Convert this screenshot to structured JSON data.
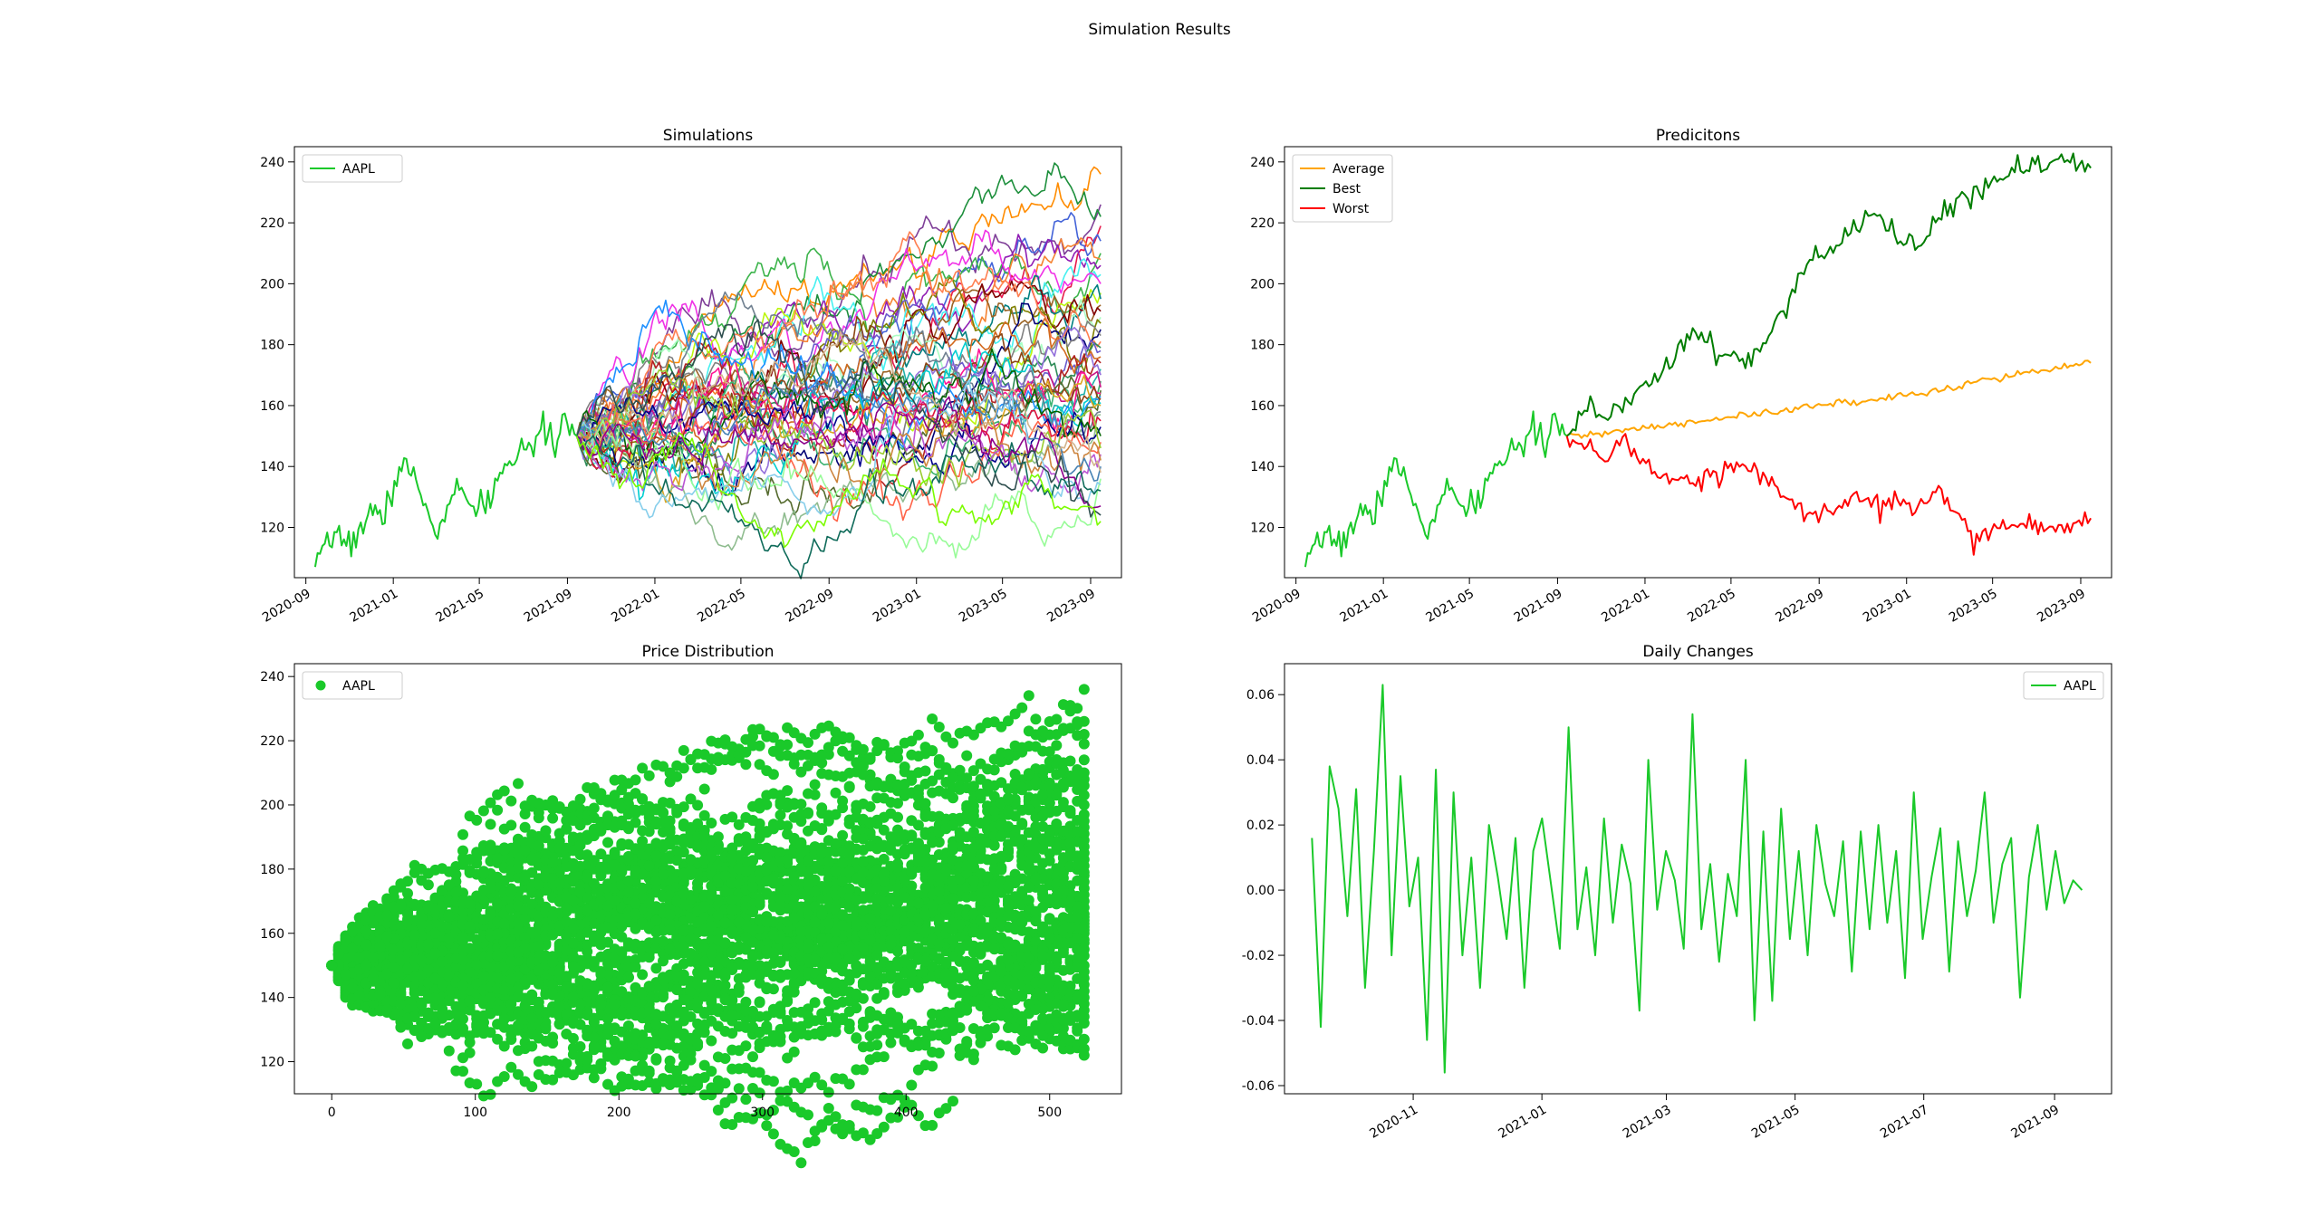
{
  "figure": {
    "suptitle": "Simulation Results"
  },
  "chart_data": [
    {
      "id": "simulations",
      "type": "line",
      "title": "Simulations",
      "xlabel": "",
      "ylabel": "",
      "x_ticks": [
        "2020-09",
        "2021-01",
        "2021-05",
        "2021-09",
        "2022-01",
        "2022-05",
        "2022-09",
        "2023-01",
        "2023-05",
        "2023-09"
      ],
      "xlim": [
        "2020-08-16",
        "2023-10-14"
      ],
      "y_ticks": [
        120,
        140,
        160,
        180,
        200,
        220,
        240
      ],
      "ylim": [
        103.5,
        245
      ],
      "legend": {
        "placement": "upper left",
        "entries": [
          {
            "label": "AAPL",
            "color": "#1ac92a",
            "marker": "line"
          }
        ]
      },
      "history": {
        "name": "AAPL",
        "color": "#1ac92a",
        "start": "2020-09-14",
        "end": "2021-09-14",
        "values": [
          107,
          112,
          120,
          114,
          118,
          126,
          122,
          131,
          142,
          136,
          128,
          119,
          124,
          133,
          128,
          125,
          130,
          137,
          141,
          148,
          146,
          151,
          149,
          155,
          150
        ]
      },
      "simulation_window": {
        "start": "2021-09-14",
        "end": "2023-09-15"
      },
      "simulation_count": 50,
      "simulation_finals": [
        236,
        226,
        222,
        219,
        214,
        210,
        208,
        206,
        203,
        200,
        197,
        195,
        193,
        191,
        189,
        187,
        185,
        183,
        181,
        179,
        178,
        176,
        174,
        172,
        170,
        168,
        166,
        165,
        164,
        163,
        162,
        161,
        160,
        158,
        157,
        155,
        153,
        150,
        148,
        146,
        144,
        142,
        140,
        138,
        136,
        134,
        132,
        127,
        124,
        122
      ],
      "simulation_colors": [
        "#ff8c00",
        "#7f3f98",
        "#1d8f3c",
        "#e6194b",
        "#4363d8",
        "#3cb44b",
        "#f58231",
        "#911eb4",
        "#46f0f0",
        "#f032e6",
        "#bcf60c",
        "#008080",
        "#9a6324",
        "#800000",
        "#aaffc3",
        "#808000",
        "#000075",
        "#808080",
        "#ff7f50",
        "#2e8b57",
        "#6a5acd",
        "#d2691e",
        "#b22222",
        "#20b2aa",
        "#9370db",
        "#3cb371",
        "#c71585",
        "#556b2f",
        "#ff1493",
        "#1e90ff",
        "#8b4513",
        "#00ced1",
        "#daa520",
        "#708090",
        "#8fbc8f",
        "#dc143c",
        "#00008b",
        "#006400",
        "#ff6347",
        "#9acd32",
        "#ba55d3",
        "#cd853f",
        "#4682b4",
        "#d2b48c",
        "#98fb98",
        "#87ceeb",
        "#0f6b5a",
        "#8b008b",
        "#2f4f4f",
        "#7cfc00"
      ]
    },
    {
      "id": "predictions",
      "type": "line",
      "title": "Predicitons",
      "xlabel": "",
      "ylabel": "",
      "x_ticks": [
        "2020-09",
        "2021-01",
        "2021-05",
        "2021-09",
        "2022-01",
        "2022-05",
        "2022-09",
        "2023-01",
        "2023-05",
        "2023-09"
      ],
      "xlim": [
        "2020-08-16",
        "2023-10-14"
      ],
      "y_ticks": [
        120,
        140,
        160,
        180,
        200,
        220,
        240
      ],
      "ylim": [
        103.5,
        245
      ],
      "legend": {
        "placement": "upper left",
        "entries": [
          {
            "label": "Average",
            "color": "#ffa500",
            "marker": "line"
          },
          {
            "label": "Best",
            "color": "#007d00",
            "marker": "line"
          },
          {
            "label": "Worst",
            "color": "#ff0000",
            "marker": "line"
          }
        ]
      },
      "series": [
        {
          "name": "Average",
          "color": "#ffa500",
          "start": "2021-09-14",
          "end": "2023-09-15",
          "values": [
            150,
            150,
            151,
            152,
            153,
            153,
            154,
            155,
            156,
            157,
            157,
            158,
            159,
            160,
            161,
            161,
            162,
            163,
            164,
            165,
            166,
            168,
            169,
            170,
            171,
            172,
            173,
            174
          ]
        },
        {
          "name": "Best",
          "color": "#007d00",
          "start": "2021-09-14",
          "end": "2023-09-15",
          "values": [
            150,
            158,
            157,
            160,
            165,
            172,
            180,
            183,
            177,
            175,
            178,
            190,
            202,
            210,
            214,
            220,
            222,
            216,
            212,
            220,
            226,
            229,
            233,
            237,
            239,
            241,
            240,
            238
          ]
        },
        {
          "name": "Worst",
          "color": "#ff0000",
          "start": "2021-09-14",
          "end": "2023-09-15",
          "values": [
            150,
            145,
            143,
            148,
            140,
            137,
            134,
            136,
            139,
            141,
            137,
            131,
            125,
            123,
            127,
            130,
            127,
            130,
            125,
            133,
            125,
            118,
            119,
            120,
            119,
            120,
            121,
            123
          ]
        }
      ],
      "history": {
        "name": "AAPL",
        "color": "#1ac92a",
        "start": "2020-09-14",
        "end": "2021-09-14",
        "values": [
          107,
          112,
          120,
          114,
          118,
          126,
          122,
          131,
          142,
          136,
          128,
          119,
          124,
          133,
          128,
          125,
          130,
          137,
          141,
          148,
          146,
          151,
          149,
          155,
          150
        ]
      }
    },
    {
      "id": "price-distribution",
      "type": "scatter",
      "title": "Price Distribution",
      "xlabel": "",
      "ylabel": "",
      "x_ticks": [
        0,
        100,
        200,
        300,
        400,
        500
      ],
      "xlim": [
        -26,
        550
      ],
      "y_ticks": [
        120,
        140,
        160,
        180,
        200,
        220,
        240
      ],
      "ylim": [
        110,
        244
      ],
      "legend": {
        "placement": "upper left",
        "entries": [
          {
            "label": "AAPL",
            "color": "#1ac92a",
            "marker": "dot"
          }
        ]
      },
      "color": "#1ac92a",
      "x_range": [
        0,
        524
      ],
      "start_value": 150,
      "simulation_count": 50,
      "simulation_finals": [
        236,
        226,
        222,
        219,
        214,
        210,
        208,
        206,
        203,
        200,
        197,
        195,
        193,
        191,
        189,
        187,
        185,
        183,
        181,
        179,
        178,
        176,
        174,
        172,
        170,
        168,
        166,
        165,
        164,
        163,
        162,
        161,
        160,
        158,
        157,
        155,
        153,
        150,
        148,
        146,
        144,
        142,
        140,
        138,
        136,
        134,
        132,
        127,
        124,
        122
      ]
    },
    {
      "id": "daily-changes",
      "type": "line",
      "title": "Daily Changes",
      "xlabel": "",
      "ylabel": "",
      "x_ticks": [
        "2020-11",
        "2021-01",
        "2021-03",
        "2021-05",
        "2021-07",
        "2021-09"
      ],
      "xlim": [
        "2020-09-01",
        "2021-09-28"
      ],
      "y_ticks": [
        -0.06,
        -0.04,
        -0.02,
        0.0,
        0.02,
        0.04,
        0.06
      ],
      "ylim": [
        -0.0625,
        0.0695
      ],
      "legend": {
        "placement": "upper right",
        "entries": [
          {
            "label": "AAPL",
            "color": "#1ac92a",
            "marker": "line"
          }
        ]
      },
      "series": [
        {
          "name": "AAPL",
          "color": "#1ac92a",
          "start": "2020-09-14",
          "end": "2021-09-14",
          "values": [
            0.016,
            -0.042,
            0.038,
            0.025,
            -0.008,
            0.031,
            -0.03,
            0.012,
            0.063,
            -0.02,
            0.035,
            -0.005,
            0.01,
            -0.046,
            0.037,
            -0.056,
            0.03,
            -0.02,
            0.01,
            -0.03,
            0.02,
            0.004,
            -0.015,
            0.016,
            -0.03,
            0.012,
            0.022,
            0.002,
            -0.018,
            0.05,
            -0.012,
            0.007,
            -0.02,
            0.022,
            -0.01,
            0.014,
            0.002,
            -0.037,
            0.04,
            -0.006,
            0.012,
            0.003,
            -0.018,
            0.054,
            -0.012,
            0.008,
            -0.022,
            0.005,
            -0.008,
            0.04,
            -0.04,
            0.018,
            -0.034,
            0.025,
            -0.015,
            0.012,
            -0.02,
            0.02,
            0.002,
            -0.008,
            0.015,
            -0.025,
            0.018,
            -0.012,
            0.02,
            -0.01,
            0.012,
            -0.027,
            0.03,
            -0.015,
            0.004,
            0.019,
            -0.025,
            0.015,
            -0.008,
            0.006,
            0.03,
            -0.01,
            0.008,
            0.016,
            -0.033,
            0.004,
            0.02,
            -0.006,
            0.012,
            -0.004,
            0.003,
            0.0
          ]
        }
      ]
    }
  ]
}
